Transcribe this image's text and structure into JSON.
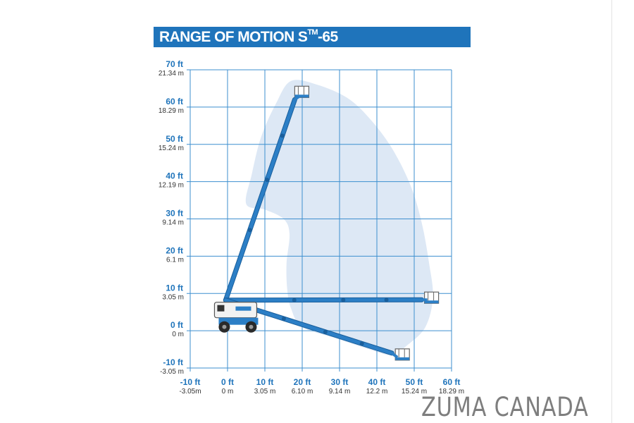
{
  "title": {
    "main": "RANGE OF MOTION S",
    "superscript": "TM",
    "suffix": "-65"
  },
  "watermark": "ZUMA CANADA",
  "colors": {
    "accent": "#1f74bb",
    "grid": "#3d8fcf",
    "envelope_fill": "#dde8f5",
    "boom": "#2c7fc6",
    "label_primary": "#1f74bb",
    "label_secondary": "#333333",
    "watermark": "#7e7e7e"
  },
  "chart_data": {
    "type": "range-of-motion",
    "x_axis": {
      "unit": "ft",
      "ticks": [
        {
          "ft": "-10 ft",
          "m": "-3.05m"
        },
        {
          "ft": "0 ft",
          "m": "0 m"
        },
        {
          "ft": "10 ft",
          "m": "3.05 m"
        },
        {
          "ft": "20 ft",
          "m": "6.10 m"
        },
        {
          "ft": "30 ft",
          "m": "9.14 m"
        },
        {
          "ft": "40 ft",
          "m": "12.2 m"
        },
        {
          "ft": "50 ft",
          "m": "15.24 m"
        },
        {
          "ft": "60 ft",
          "m": "18.29 m"
        }
      ],
      "range": [
        -10,
        60
      ]
    },
    "y_axis": {
      "unit": "ft",
      "ticks": [
        {
          "ft": "70 ft",
          "m": "21.34 m"
        },
        {
          "ft": "60 ft",
          "m": "18.29 m"
        },
        {
          "ft": "50 ft",
          "m": "15.24 m"
        },
        {
          "ft": "40 ft",
          "m": "12.19 m"
        },
        {
          "ft": "30 ft",
          "m": "9.14 m"
        },
        {
          "ft": "20 ft",
          "m": "6.1 m"
        },
        {
          "ft": "10 ft",
          "m": "3.05 m"
        },
        {
          "ft": "0 ft",
          "m": "0 m"
        },
        {
          "ft": "-10 ft",
          "m": "-3.05 m"
        }
      ],
      "range": [
        -10,
        70
      ]
    },
    "grid": true,
    "max_platform_height_ft": 65,
    "max_horizontal_outreach_ft": 55,
    "envelope": [
      [
        5,
        34
      ],
      [
        6.5,
        42
      ],
      [
        9,
        52
      ],
      [
        13,
        61
      ],
      [
        17,
        67
      ],
      [
        24,
        66
      ],
      [
        32,
        62.5
      ],
      [
        38,
        57
      ],
      [
        44,
        49
      ],
      [
        49,
        39
      ],
      [
        52,
        29
      ],
      [
        54,
        18
      ],
      [
        55,
        9
      ],
      [
        53,
        1
      ],
      [
        48,
        -4
      ],
      [
        44,
        -6.5
      ],
      [
        38,
        -5
      ],
      [
        29,
        -2
      ],
      [
        20,
        1
      ],
      [
        17,
        6
      ],
      [
        16,
        11
      ],
      [
        15.8,
        18
      ],
      [
        16.6,
        26
      ],
      [
        15,
        30
      ],
      [
        10,
        32.5
      ]
    ],
    "boom_positions": [
      {
        "position": "vertical",
        "tip": [
          18,
          62
        ]
      },
      {
        "position": "horizontal",
        "tip": [
          52,
          8.3
        ]
      },
      {
        "position": "below-grade",
        "tip": [
          44,
          -6
        ]
      }
    ]
  }
}
